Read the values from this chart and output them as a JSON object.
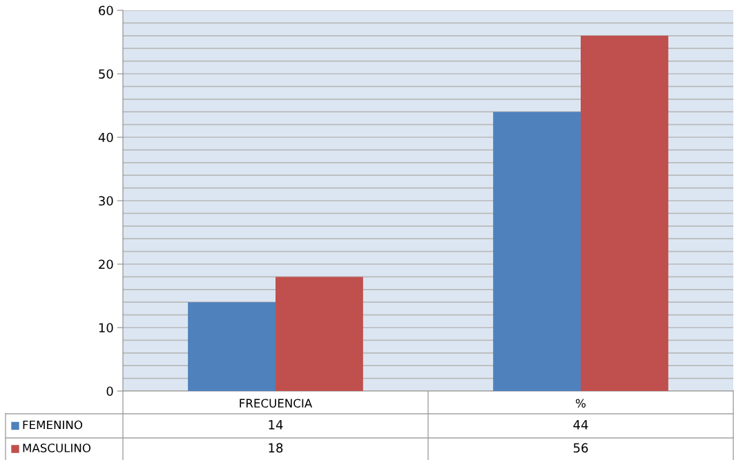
{
  "chart_data": {
    "type": "bar",
    "categories": [
      "FRECUENCIA",
      "%"
    ],
    "series": [
      {
        "name": "FEMENINO",
        "color": "#4f81bd",
        "values": [
          14,
          44
        ]
      },
      {
        "name": "MASCULINO",
        "color": "#c0504d",
        "values": [
          18,
          56
        ]
      }
    ],
    "ylim": [
      0,
      60
    ],
    "yticks": [
      0,
      {
        "value": 2,
        "label": null
      },
      {
        "value": 4,
        "label": null
      },
      {
        "value": 6,
        "label": null
      },
      {
        "value": 8,
        "label": null
      },
      10,
      {
        "value": 12,
        "label": null
      },
      {
        "value": 14,
        "label": null
      },
      {
        "value": 16,
        "label": null
      },
      {
        "value": 18,
        "label": null
      },
      20,
      {
        "value": 22,
        "label": null
      },
      {
        "value": 24,
        "label": null
      },
      {
        "value": 26,
        "label": null
      },
      {
        "value": 28,
        "label": null
      },
      30,
      {
        "value": 32,
        "label": null
      },
      {
        "value": 34,
        "label": null
      },
      {
        "value": 36,
        "label": null
      },
      {
        "value": 38,
        "label": null
      },
      40,
      {
        "value": 42,
        "label": null
      },
      {
        "value": 44,
        "label": null
      },
      {
        "value": 46,
        "label": null
      },
      {
        "value": 48,
        "label": null
      },
      50,
      {
        "value": 52,
        "label": null
      },
      {
        "value": 54,
        "label": null
      },
      {
        "value": 56,
        "label": null
      },
      {
        "value": 58,
        "label": null
      },
      60
    ],
    "grid": "y",
    "data_labels": true,
    "legend": "bottom"
  }
}
